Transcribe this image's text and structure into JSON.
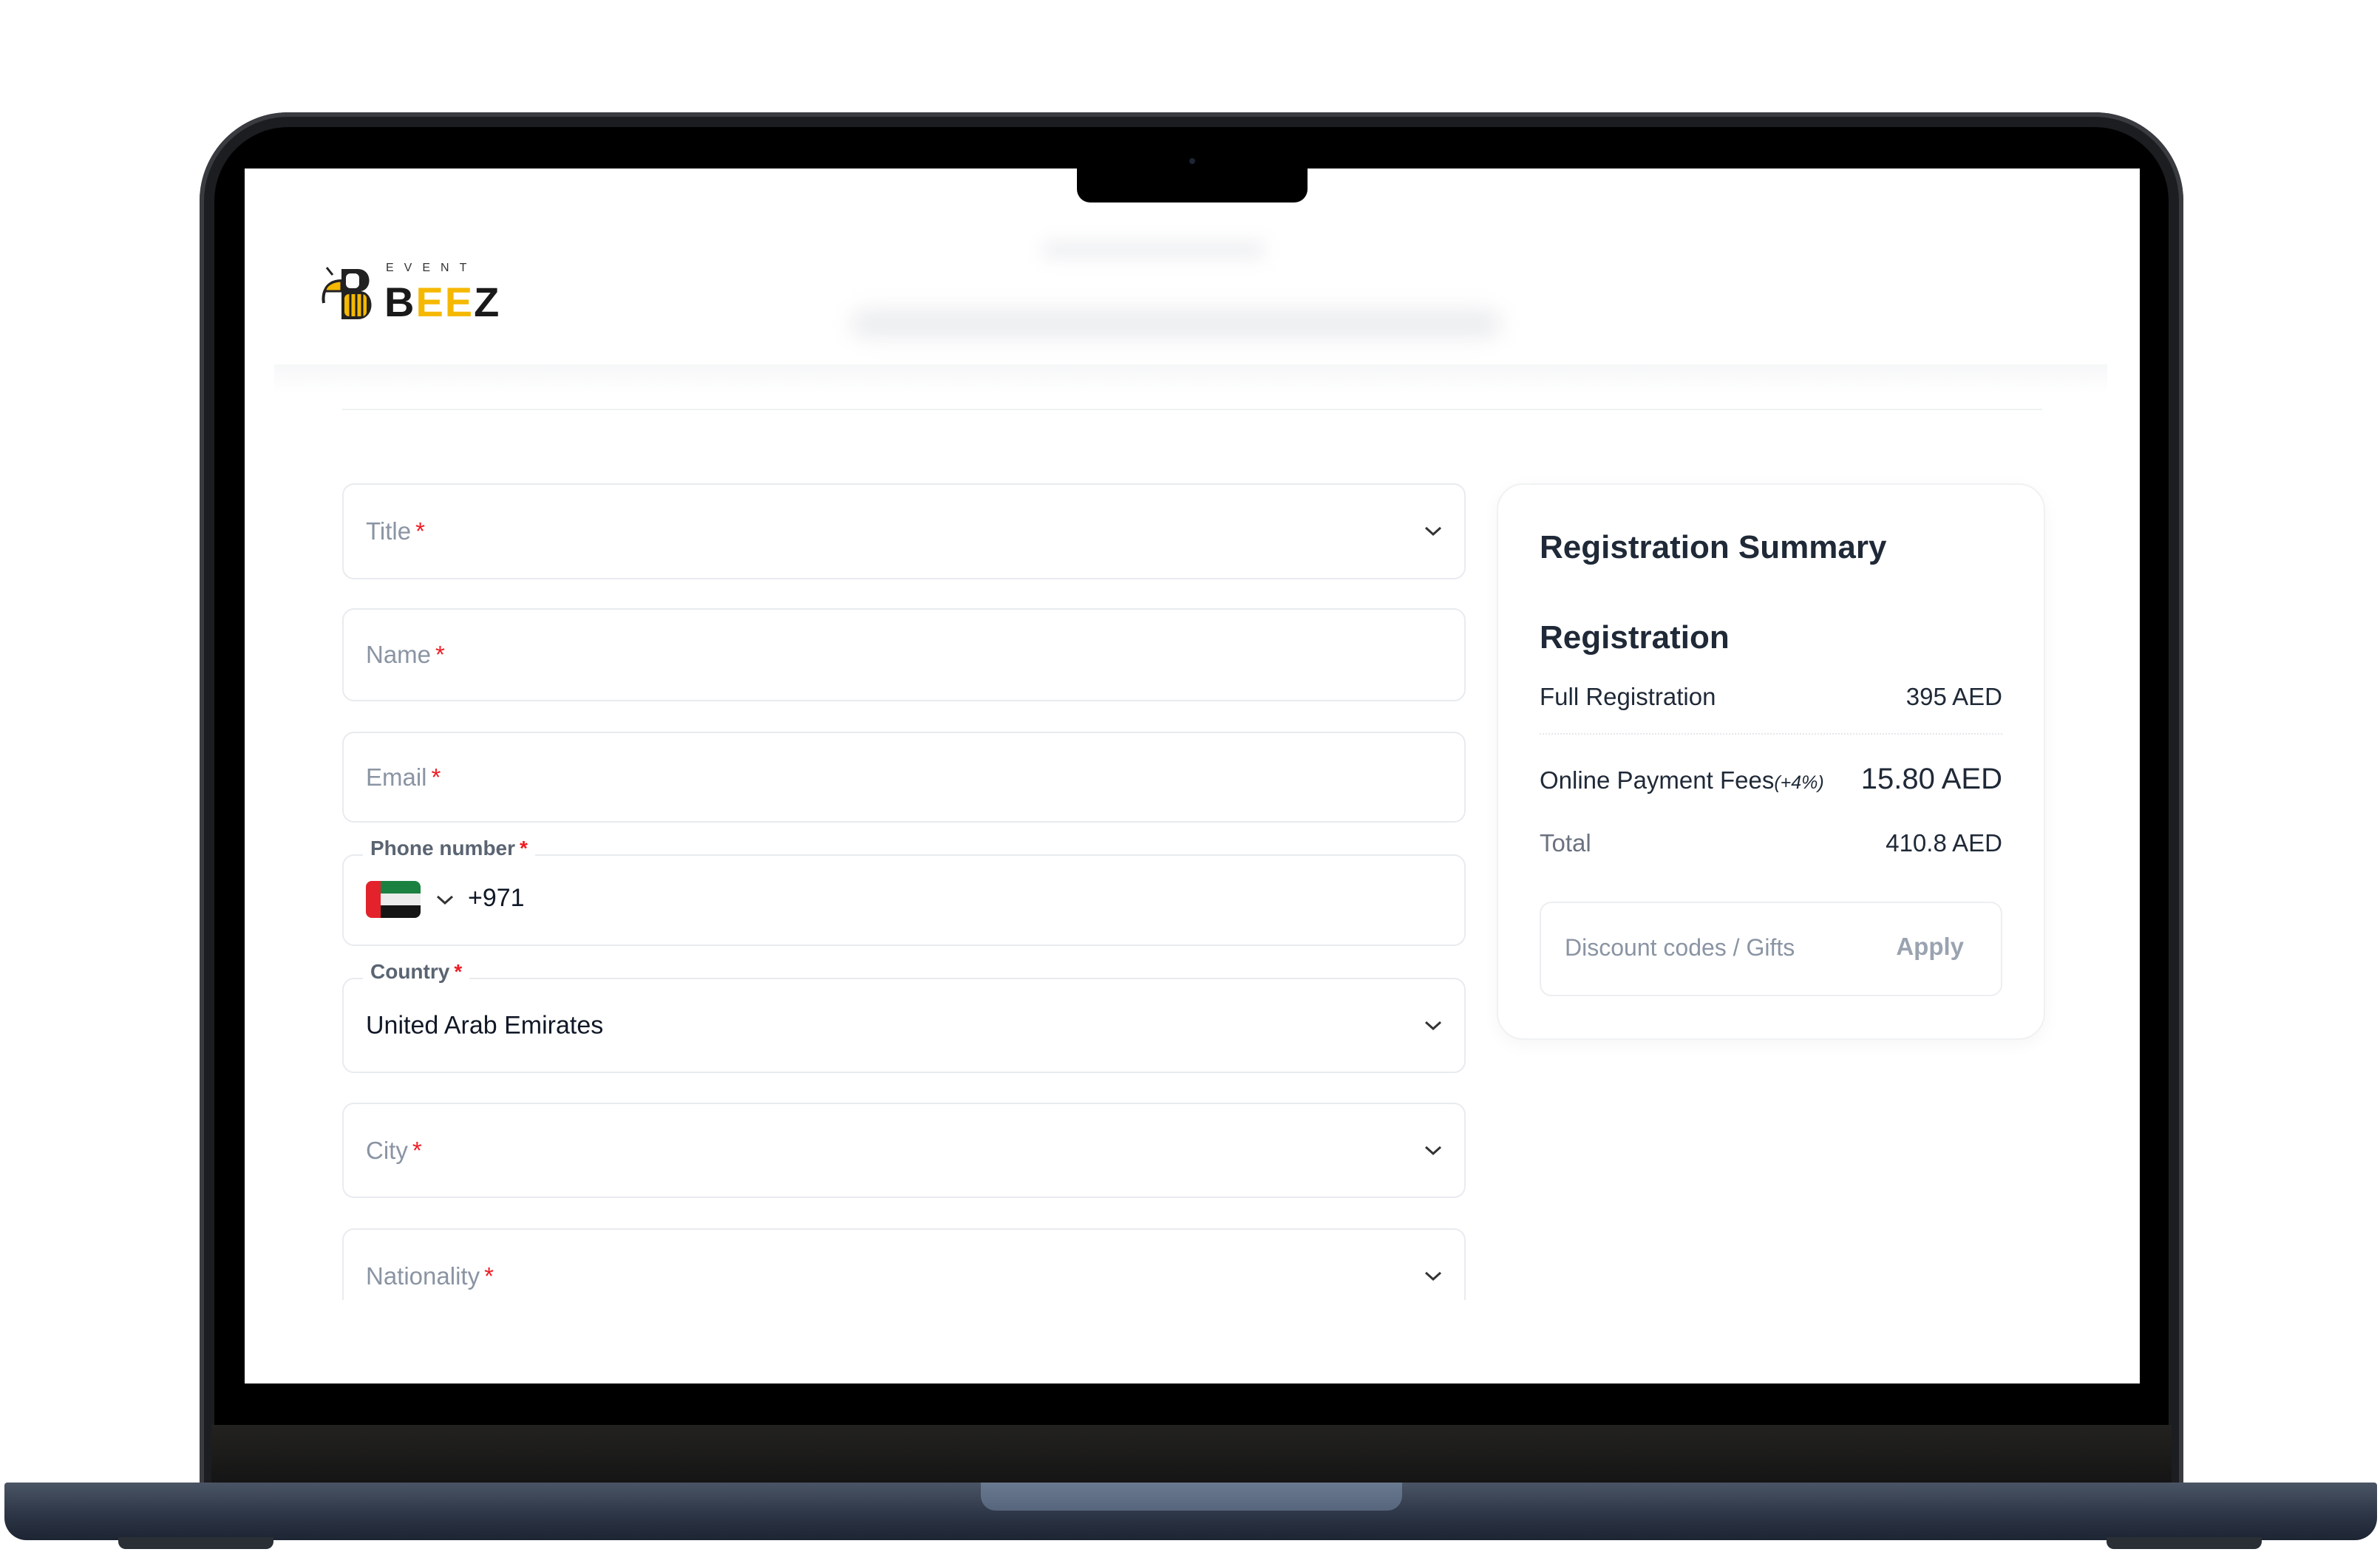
{
  "logo": {
    "top_text": "EVENT",
    "main_text": "BEEZ",
    "brand_yellow": "#f5b800"
  },
  "form": {
    "required_mark": "*",
    "title": {
      "placeholder": "Title",
      "icon": "chevron-down-icon"
    },
    "name": {
      "placeholder": "Name"
    },
    "email": {
      "placeholder": "Email"
    },
    "phone": {
      "label": "Phone number",
      "dial_code": "+971",
      "flag": "uae-flag-icon"
    },
    "country": {
      "label": "Country",
      "value": "United Arab Emirates"
    },
    "city": {
      "placeholder": "City"
    },
    "nationality": {
      "placeholder": "Nationality"
    }
  },
  "summary": {
    "title": "Registration Summary",
    "section": "Registration",
    "items": [
      {
        "label": "Full Registration",
        "value": "395 AED"
      }
    ],
    "fees": {
      "label": "Online Payment Fees",
      "note": "(+4%)",
      "value": "15.80 AED"
    },
    "total": {
      "label": "Total",
      "value": "410.8 AED"
    },
    "discount": {
      "placeholder": "Discount codes / Gifts",
      "apply_label": "Apply"
    }
  },
  "colors": {
    "required": "#ef1c24",
    "text": "#1f2937",
    "muted": "#8a94a3"
  }
}
